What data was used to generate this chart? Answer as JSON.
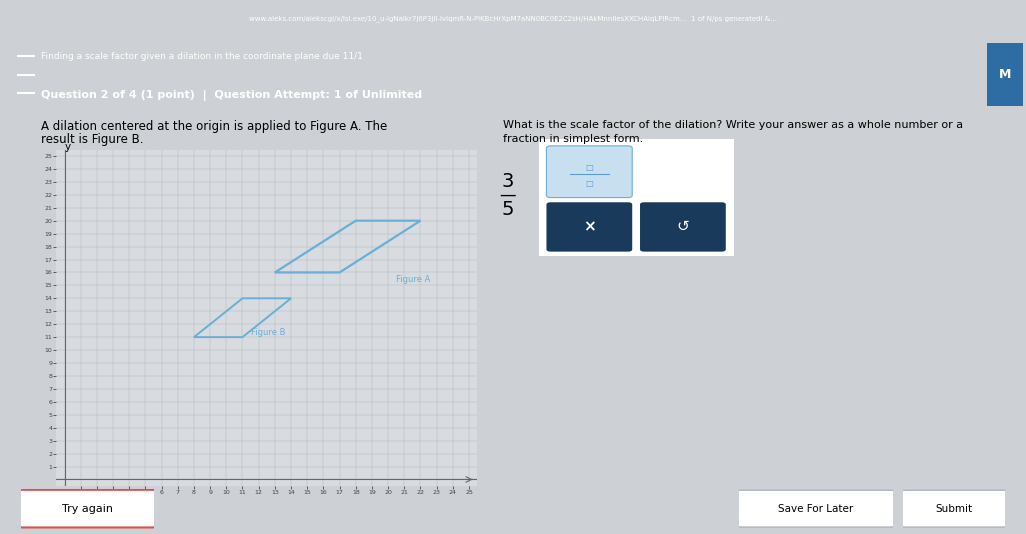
{
  "header_bg": "#1e5e3e",
  "header_dark": "#174d33",
  "page_bg": "#cdd0d4",
  "content_bg": "#d8dce0",
  "title_line1": "Finding a scale factor given a dilation in the coordinate plane due 11/1",
  "title_line2": "Question 2 of 4 (1 point)  |  Question Attempt: 1 of Unlimited",
  "problem_text_line1": "A dilation centered at the origin is applied to Figure A. The",
  "problem_text_line2": "result is Figure B.",
  "question_text_line1": "What is the scale factor of the dilation? Write your answer as a whole number or a",
  "question_text_line2": "fraction in simplest form.",
  "figure_A_color": "#6baed6",
  "figure_B_color": "#6baed6",
  "figure_A_label": "Figure A",
  "figure_B_label": "Figure B",
  "answer_numerator": "3",
  "answer_denominator": "5",
  "grid_color": "#b0b8c0",
  "axis_color": "#888888",
  "x_min": 0,
  "x_max": 25,
  "y_min": 0,
  "y_max": 25,
  "figure_A_vertices": [
    [
      13,
      16
    ],
    [
      18,
      20
    ],
    [
      22,
      20
    ],
    [
      17,
      16
    ]
  ],
  "figure_B_vertices": [
    [
      8,
      11
    ],
    [
      11,
      14
    ],
    [
      14,
      14
    ],
    [
      11,
      11
    ]
  ],
  "try_again_text": "Try again",
  "save_text": "Save For Later",
  "submit_text": "Submit",
  "btn_dark_blue": "#1a3a5c",
  "white": "#ffffff",
  "light_blue_input": "#c8dff0",
  "input_border": "#6baed6"
}
